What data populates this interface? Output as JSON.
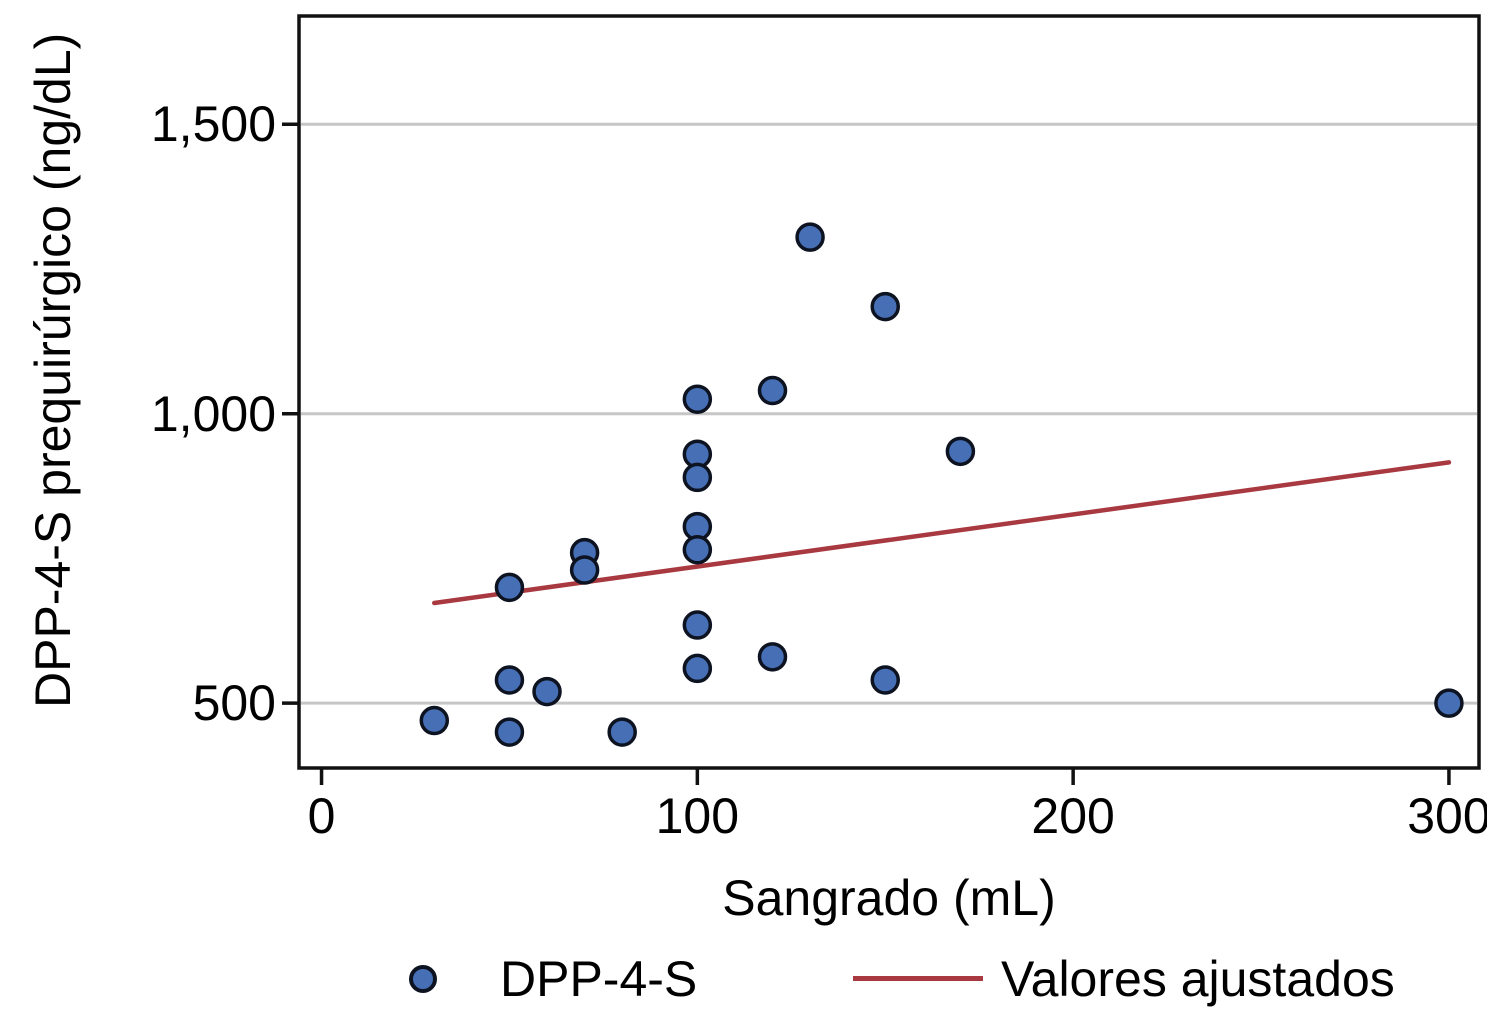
{
  "figure": {
    "background": "#ffffff"
  },
  "chart_data": {
    "type": "scatter",
    "title": "",
    "xlabel": "Sangrado (mL)",
    "ylabel": "DPP-4-S prequirúrgico (ng/dL)",
    "xlim": [
      -6,
      308
    ],
    "ylim": [
      388,
      1687
    ],
    "x_ticks": [
      0,
      100,
      200,
      300
    ],
    "x_tick_labels": [
      "0",
      "100",
      "200",
      "300"
    ],
    "y_ticks": [
      500,
      1000,
      1500
    ],
    "y_tick_labels": [
      "500",
      "1,000",
      "1,500"
    ],
    "grid": "horizontal-only",
    "gridline_color": "#c6c6c6",
    "axis_color": "#111111",
    "legend_position": "bottom",
    "series": [
      {
        "name": "DPP-4-S",
        "type": "scatter",
        "marker": "circle",
        "marker_fill": "#466fb5",
        "marker_stroke": "#0d1321",
        "points": [
          [
            30,
            470
          ],
          [
            50,
            700
          ],
          [
            50,
            540
          ],
          [
            50,
            450
          ],
          [
            60,
            520
          ],
          [
            70,
            760
          ],
          [
            70,
            730
          ],
          [
            80,
            450
          ],
          [
            100,
            1025
          ],
          [
            100,
            930
          ],
          [
            100,
            890
          ],
          [
            100,
            805
          ],
          [
            100,
            765
          ],
          [
            100,
            635
          ],
          [
            100,
            560
          ],
          [
            120,
            1040
          ],
          [
            120,
            580
          ],
          [
            130,
            1305
          ],
          [
            150,
            1185
          ],
          [
            150,
            540
          ],
          [
            170,
            935
          ],
          [
            300,
            500
          ]
        ]
      },
      {
        "name": "Valores ajustados",
        "type": "line",
        "color": "#a93940",
        "points": [
          [
            30,
            673
          ],
          [
            300,
            916
          ]
        ]
      }
    ]
  }
}
